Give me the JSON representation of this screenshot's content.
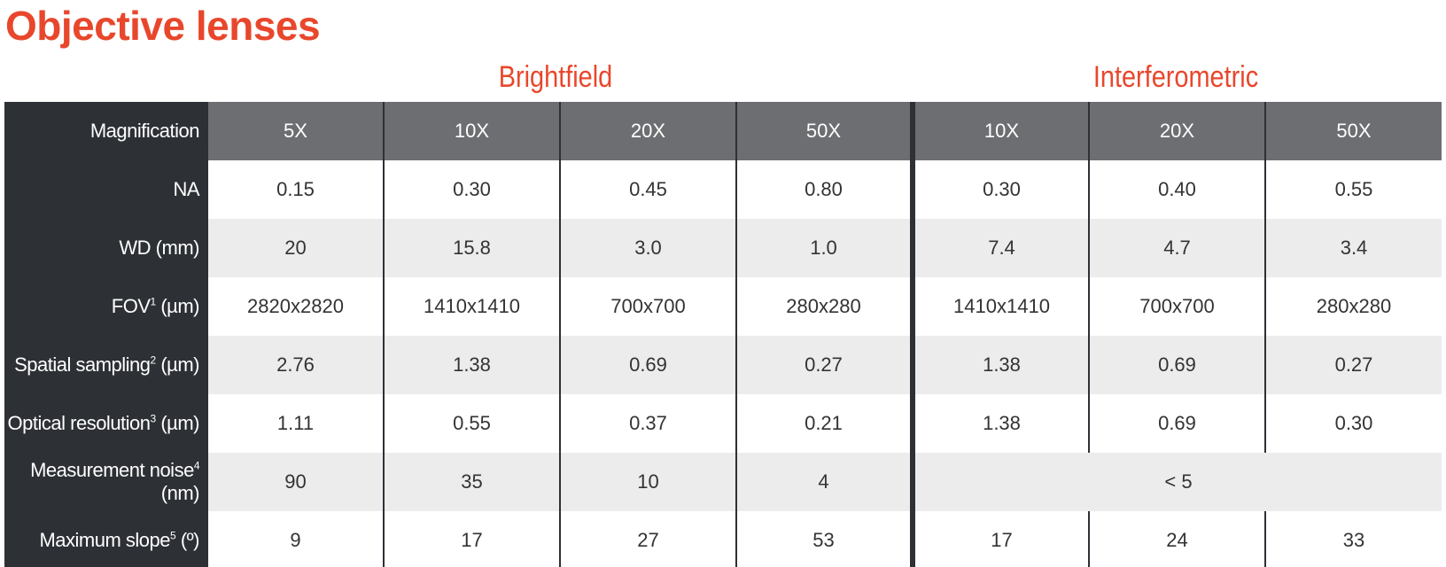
{
  "title": "Objective lenses",
  "header": {
    "label": "Magnification"
  },
  "groups": [
    {
      "name": "Brightfield",
      "columns": [
        "5X",
        "10X",
        "20X",
        "50X"
      ]
    },
    {
      "name": "Interferometric",
      "columns": [
        "10X",
        "20X",
        "50X"
      ]
    }
  ],
  "rows": [
    {
      "label": "NA",
      "values": [
        [
          "0.15",
          "0.30",
          "0.45",
          "0.80"
        ],
        [
          "0.30",
          "0.40",
          "0.55"
        ]
      ]
    },
    {
      "label": "WD (mm)",
      "values": [
        [
          "20",
          "15.8",
          "3.0",
          "1.0"
        ],
        [
          "7.4",
          "4.7",
          "3.4"
        ]
      ]
    },
    {
      "label": "FOV",
      "sup": "1",
      "unit": "(µm)",
      "values": [
        [
          "2820x2820",
          "1410x1410",
          "700x700",
          "280x280"
        ],
        [
          "1410x1410",
          "700x700",
          "280x280"
        ]
      ]
    },
    {
      "label": "Spatial sampling",
      "sup": "2",
      "unit": "(µm)",
      "values": [
        [
          "2.76",
          "1.38",
          "0.69",
          "0.27"
        ],
        [
          "1.38",
          "0.69",
          "0.27"
        ]
      ]
    },
    {
      "label": "Optical resolution",
      "sup": "3",
      "unit": "(µm)",
      "values": [
        [
          "1.11",
          "0.55",
          "0.37",
          "0.21"
        ],
        [
          "1.38",
          "0.69",
          "0.30"
        ]
      ]
    },
    {
      "label": "Measurement noise",
      "sup": "4",
      "unit": "(nm)",
      "values": [
        [
          "90",
          "35",
          "10",
          "4"
        ],
        [
          "< 5"
        ]
      ]
    },
    {
      "label": "Maximum slope",
      "sup": "5",
      "unit": "(º)",
      "values": [
        [
          "9",
          "17",
          "27",
          "53"
        ],
        [
          "17",
          "24",
          "33"
        ]
      ]
    }
  ]
}
